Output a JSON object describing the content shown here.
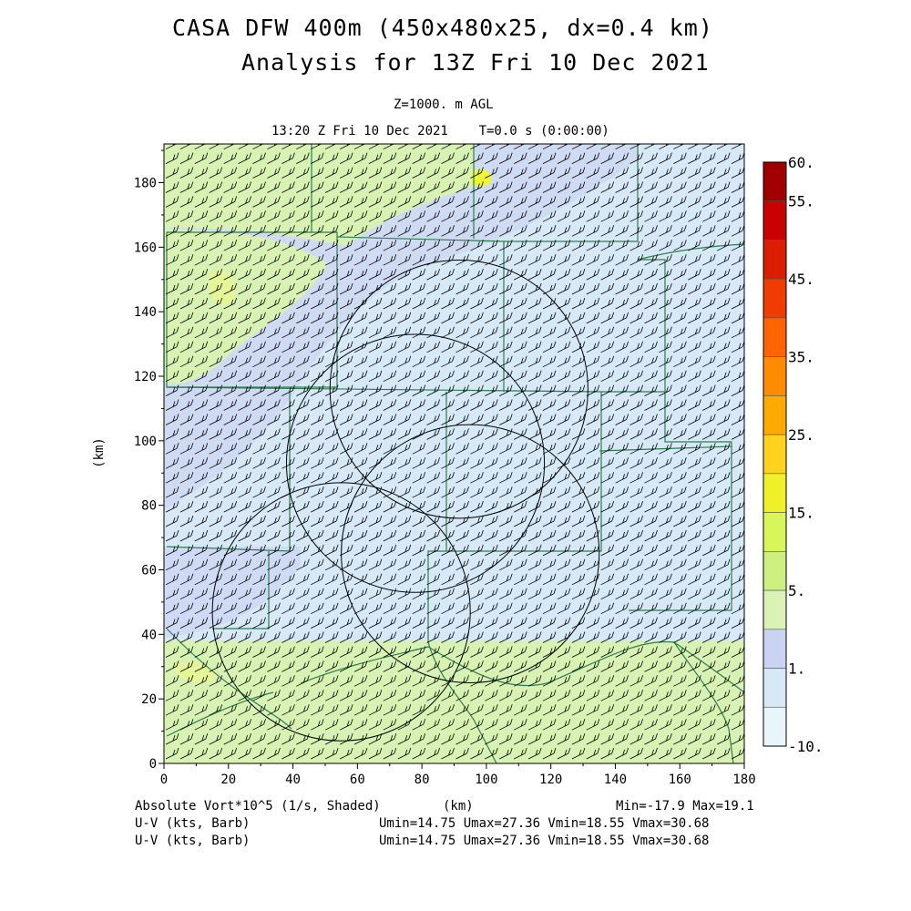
{
  "header": {
    "title_line1": "CASA DFW 400m (450x480x25, dx=0.4 km)",
    "title_line2": "Analysis for 13Z Fri 10 Dec 2021",
    "level": "Z=1000. m AGL",
    "time": "13:20 Z Fri 10 Dec 2021    T=0.0 s (0:00:00)"
  },
  "footer": {
    "field_label": "Absolute Vort*10^5 (1/s, Shaded)",
    "x_unit": "(km)",
    "min_max": "Min=-17.9 Max=19.1",
    "wind_label_1": "U-V (kts, Barb)",
    "wind_stats_1": "Umin=14.75 Umax=27.36 Vmin=18.55 Vmax=30.68",
    "wind_label_2": "U-V (kts, Barb)",
    "wind_stats_2": "Umin=14.75 Umax=27.36 Vmin=18.55 Vmax=30.68"
  },
  "colors": {
    "background_light_blue": "#d7e8f7",
    "lavender": "#ccd5f2",
    "light_green": "#d8f2b4",
    "yellow_green": "#e6f598",
    "yellow": "#eef535",
    "county_lines": "#2e7d4f",
    "barbs": "#000000"
  },
  "chart_data": {
    "type": "heatmap",
    "title": "CASA DFW 400m (450x480x25, dx=0.4 km)",
    "subtitle": "Analysis for 13Z Fri 10 Dec 2021",
    "xlabel": "(km)",
    "ylabel": "(km)",
    "xlim": [
      0,
      180
    ],
    "ylim": [
      0,
      192
    ],
    "x_ticks": [
      "0",
      "20",
      "40",
      "60",
      "80",
      "100",
      "120",
      "140",
      "160",
      "180"
    ],
    "y_ticks": [
      "0",
      "20",
      "40",
      "60",
      "80",
      "100",
      "120",
      "140",
      "160",
      "180"
    ],
    "colorbar": {
      "labels": [
        "60.",
        "55.",
        "45.",
        "35.",
        "25.",
        "15.",
        "5.",
        "1.",
        "-10."
      ],
      "segments": [
        {
          "color": "#a00000"
        },
        {
          "color": "#c80000"
        },
        {
          "color": "#dc1e00"
        },
        {
          "color": "#f03c00"
        },
        {
          "color": "#ff6400"
        },
        {
          "color": "#ff8c00"
        },
        {
          "color": "#ffaa00"
        },
        {
          "color": "#ffd21e"
        },
        {
          "color": "#f0f028"
        },
        {
          "color": "#d8f55a"
        },
        {
          "color": "#cdf080"
        },
        {
          "color": "#daf2b4"
        },
        {
          "color": "#cad3f2"
        },
        {
          "color": "#d7e8f7"
        },
        {
          "color": "#e8f5fb"
        }
      ]
    },
    "field_min": -17.9,
    "field_max": 19.1,
    "regions": [
      {
        "label": "upper-left-green",
        "color": "#d8f2b4",
        "x": [
          0,
          55
        ],
        "y": [
          120,
          165
        ]
      },
      {
        "label": "top-green-band",
        "color": "#d8f2b4",
        "x": [
          0,
          95
        ],
        "y": [
          165,
          192
        ]
      },
      {
        "label": "bottom-green-band",
        "color": "#d8f2b4",
        "x": [
          0,
          180
        ],
        "y": [
          0,
          38
        ]
      },
      {
        "label": "yellow-spot",
        "color": "#eef535",
        "x": [
          95,
          100
        ],
        "y": [
          180,
          185
        ]
      }
    ],
    "radar_circles": [
      {
        "cx": 91.5,
        "cy": 116,
        "r": 40
      },
      {
        "cx": 78,
        "cy": 93,
        "r": 40
      },
      {
        "cx": 95,
        "cy": 65,
        "r": 40
      },
      {
        "cx": 55,
        "cy": 47,
        "r": 40
      }
    ],
    "wind_barb_spacing_km": 4.5
  }
}
